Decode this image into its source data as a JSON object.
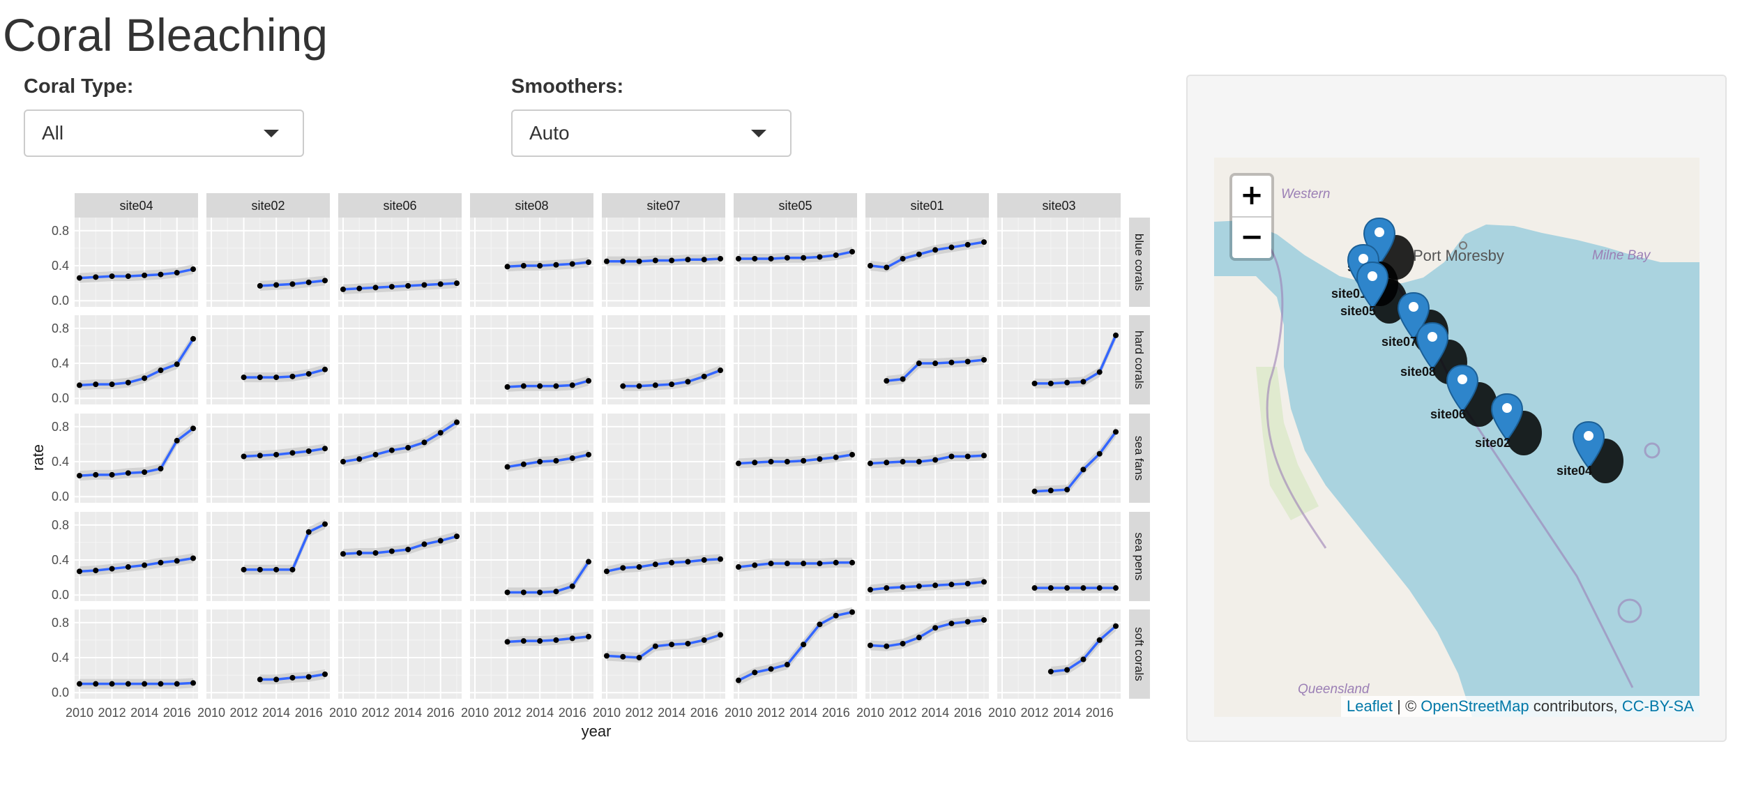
{
  "app": {
    "title": "Coral Bleaching"
  },
  "controls": {
    "coral_type": {
      "label": "Coral Type:",
      "value": "All"
    },
    "smoothers": {
      "label": "Smoothers:",
      "value": "Auto"
    }
  },
  "chart_data": {
    "type": "line",
    "xlabel": "year",
    "ylabel": "rate",
    "x_ticks": [
      2010,
      2012,
      2014,
      2016
    ],
    "y_ticks": [
      0.0,
      0.4,
      0.8
    ],
    "y_tick_labels": [
      "0.0",
      "0.4",
      "0.8"
    ],
    "xlim": [
      2009.7,
      2017.3
    ],
    "ylim": [
      -0.07,
      0.95
    ],
    "grid": true,
    "smoother_band": true,
    "colors": {
      "line": "#3366ff",
      "point": "#000000",
      "band": "#bdbdbd",
      "panel": "#ebebeb",
      "strip": "#d9d9d9"
    },
    "sites": [
      "site04",
      "site02",
      "site06",
      "site08",
      "site07",
      "site05",
      "site01",
      "site03"
    ],
    "coral_types": [
      "blue corals",
      "hard corals",
      "sea fans",
      "sea pens",
      "soft corals"
    ],
    "series": [
      {
        "site": "site04",
        "coral": "blue corals",
        "x": [
          2010,
          2011,
          2012,
          2013,
          2014,
          2015,
          2016,
          2017
        ],
        "values": [
          0.26,
          0.27,
          0.28,
          0.28,
          0.29,
          0.3,
          0.32,
          0.36
        ]
      },
      {
        "site": "site02",
        "coral": "blue corals",
        "x": [
          2013,
          2014,
          2015,
          2016,
          2017
        ],
        "values": [
          0.17,
          0.18,
          0.19,
          0.21,
          0.23
        ]
      },
      {
        "site": "site06",
        "coral": "blue corals",
        "x": [
          2010,
          2011,
          2012,
          2013,
          2014,
          2015,
          2016,
          2017
        ],
        "values": [
          0.13,
          0.14,
          0.15,
          0.16,
          0.17,
          0.18,
          0.19,
          0.2
        ]
      },
      {
        "site": "site08",
        "coral": "blue corals",
        "x": [
          2012,
          2013,
          2014,
          2015,
          2016,
          2017
        ],
        "values": [
          0.39,
          0.4,
          0.4,
          0.41,
          0.42,
          0.44
        ]
      },
      {
        "site": "site07",
        "coral": "blue corals",
        "x": [
          2010,
          2011,
          2012,
          2013,
          2014,
          2015,
          2016,
          2017
        ],
        "values": [
          0.45,
          0.45,
          0.45,
          0.46,
          0.46,
          0.47,
          0.47,
          0.48
        ]
      },
      {
        "site": "site05",
        "coral": "blue corals",
        "x": [
          2010,
          2011,
          2012,
          2013,
          2014,
          2015,
          2016,
          2017
        ],
        "values": [
          0.48,
          0.48,
          0.48,
          0.49,
          0.49,
          0.5,
          0.52,
          0.56
        ]
      },
      {
        "site": "site01",
        "coral": "blue corals",
        "x": [
          2010,
          2011,
          2012,
          2013,
          2014,
          2015,
          2016,
          2017
        ],
        "values": [
          0.4,
          0.38,
          0.48,
          0.53,
          0.58,
          0.61,
          0.64,
          0.67
        ]
      },
      {
        "site": "site04",
        "coral": "hard corals",
        "x": [
          2010,
          2011,
          2012,
          2013,
          2014,
          2015,
          2016,
          2017
        ],
        "values": [
          0.15,
          0.16,
          0.16,
          0.18,
          0.23,
          0.32,
          0.39,
          0.68
        ]
      },
      {
        "site": "site02",
        "coral": "hard corals",
        "x": [
          2012,
          2013,
          2014,
          2015,
          2016,
          2017
        ],
        "values": [
          0.24,
          0.24,
          0.24,
          0.25,
          0.28,
          0.33
        ]
      },
      {
        "site": "site08",
        "coral": "hard corals",
        "x": [
          2012,
          2013,
          2014,
          2015,
          2016,
          2017
        ],
        "values": [
          0.13,
          0.14,
          0.14,
          0.14,
          0.15,
          0.2
        ]
      },
      {
        "site": "site07",
        "coral": "hard corals",
        "x": [
          2011,
          2012,
          2013,
          2014,
          2015,
          2016,
          2017
        ],
        "values": [
          0.14,
          0.14,
          0.15,
          0.16,
          0.19,
          0.25,
          0.32
        ]
      },
      {
        "site": "site01",
        "coral": "hard corals",
        "x": [
          2011,
          2012,
          2013,
          2014,
          2015,
          2016,
          2017
        ],
        "values": [
          0.2,
          0.22,
          0.4,
          0.4,
          0.41,
          0.42,
          0.44
        ]
      },
      {
        "site": "site03",
        "coral": "hard corals",
        "x": [
          2012,
          2013,
          2014,
          2015,
          2016,
          2017
        ],
        "values": [
          0.17,
          0.17,
          0.18,
          0.19,
          0.3,
          0.72
        ]
      },
      {
        "site": "site04",
        "coral": "sea fans",
        "x": [
          2010,
          2011,
          2012,
          2013,
          2014,
          2015,
          2016,
          2017
        ],
        "values": [
          0.24,
          0.25,
          0.25,
          0.27,
          0.28,
          0.32,
          0.64,
          0.78
        ]
      },
      {
        "site": "site02",
        "coral": "sea fans",
        "x": [
          2012,
          2013,
          2014,
          2015,
          2016,
          2017
        ],
        "values": [
          0.46,
          0.47,
          0.48,
          0.5,
          0.52,
          0.55
        ]
      },
      {
        "site": "site06",
        "coral": "sea fans",
        "x": [
          2010,
          2011,
          2012,
          2013,
          2014,
          2015,
          2016,
          2017
        ],
        "values": [
          0.4,
          0.43,
          0.48,
          0.53,
          0.56,
          0.62,
          0.73,
          0.85
        ]
      },
      {
        "site": "site08",
        "coral": "sea fans",
        "x": [
          2012,
          2013,
          2014,
          2015,
          2016,
          2017
        ],
        "values": [
          0.34,
          0.37,
          0.4,
          0.41,
          0.44,
          0.48
        ]
      },
      {
        "site": "site05",
        "coral": "sea fans",
        "x": [
          2010,
          2011,
          2012,
          2013,
          2014,
          2015,
          2016,
          2017
        ],
        "values": [
          0.38,
          0.39,
          0.4,
          0.4,
          0.41,
          0.43,
          0.45,
          0.48
        ]
      },
      {
        "site": "site01",
        "coral": "sea fans",
        "x": [
          2010,
          2011,
          2012,
          2013,
          2014,
          2015,
          2016,
          2017
        ],
        "values": [
          0.38,
          0.39,
          0.4,
          0.4,
          0.42,
          0.46,
          0.46,
          0.47
        ]
      },
      {
        "site": "site03",
        "coral": "sea fans",
        "x": [
          2012,
          2013,
          2014,
          2015,
          2016,
          2017
        ],
        "values": [
          0.06,
          0.07,
          0.08,
          0.31,
          0.49,
          0.74
        ]
      },
      {
        "site": "site04",
        "coral": "sea pens",
        "x": [
          2010,
          2011,
          2012,
          2013,
          2014,
          2015,
          2016,
          2017
        ],
        "values": [
          0.27,
          0.28,
          0.3,
          0.32,
          0.34,
          0.37,
          0.39,
          0.42
        ]
      },
      {
        "site": "site02",
        "coral": "sea pens",
        "x": [
          2012,
          2013,
          2014,
          2015,
          2016,
          2017
        ],
        "values": [
          0.29,
          0.29,
          0.29,
          0.29,
          0.72,
          0.81
        ]
      },
      {
        "site": "site06",
        "coral": "sea pens",
        "x": [
          2010,
          2011,
          2012,
          2013,
          2014,
          2015,
          2016,
          2017
        ],
        "values": [
          0.47,
          0.48,
          0.48,
          0.5,
          0.52,
          0.58,
          0.62,
          0.67
        ]
      },
      {
        "site": "site08",
        "coral": "sea pens",
        "x": [
          2012,
          2013,
          2014,
          2015,
          2016,
          2017
        ],
        "values": [
          0.03,
          0.03,
          0.03,
          0.04,
          0.1,
          0.38
        ]
      },
      {
        "site": "site07",
        "coral": "sea pens",
        "x": [
          2010,
          2011,
          2012,
          2013,
          2014,
          2015,
          2016,
          2017
        ],
        "values": [
          0.27,
          0.31,
          0.32,
          0.35,
          0.37,
          0.38,
          0.4,
          0.41
        ]
      },
      {
        "site": "site05",
        "coral": "sea pens",
        "x": [
          2010,
          2011,
          2012,
          2013,
          2014,
          2015,
          2016,
          2017
        ],
        "values": [
          0.32,
          0.34,
          0.36,
          0.36,
          0.36,
          0.36,
          0.37,
          0.37
        ]
      },
      {
        "site": "site01",
        "coral": "sea pens",
        "x": [
          2010,
          2011,
          2012,
          2013,
          2014,
          2015,
          2016,
          2017
        ],
        "values": [
          0.06,
          0.08,
          0.09,
          0.1,
          0.11,
          0.12,
          0.13,
          0.15
        ]
      },
      {
        "site": "site03",
        "coral": "sea pens",
        "x": [
          2012,
          2013,
          2014,
          2015,
          2016,
          2017
        ],
        "values": [
          0.08,
          0.08,
          0.08,
          0.08,
          0.08,
          0.08
        ]
      },
      {
        "site": "site04",
        "coral": "soft corals",
        "x": [
          2010,
          2011,
          2012,
          2013,
          2014,
          2015,
          2016,
          2017
        ],
        "values": [
          0.1,
          0.1,
          0.1,
          0.1,
          0.1,
          0.1,
          0.1,
          0.11
        ]
      },
      {
        "site": "site02",
        "coral": "soft corals",
        "x": [
          2013,
          2014,
          2015,
          2016,
          2017
        ],
        "values": [
          0.15,
          0.15,
          0.17,
          0.18,
          0.21
        ]
      },
      {
        "site": "site08",
        "coral": "soft corals",
        "x": [
          2012,
          2013,
          2014,
          2015,
          2016,
          2017
        ],
        "values": [
          0.58,
          0.59,
          0.59,
          0.6,
          0.62,
          0.64
        ]
      },
      {
        "site": "site07",
        "coral": "soft corals",
        "x": [
          2010,
          2011,
          2012,
          2013,
          2014,
          2015,
          2016,
          2017
        ],
        "values": [
          0.42,
          0.41,
          0.4,
          0.53,
          0.55,
          0.56,
          0.6,
          0.66
        ]
      },
      {
        "site": "site05",
        "coral": "soft corals",
        "x": [
          2010,
          2011,
          2012,
          2013,
          2014,
          2015,
          2016,
          2017
        ],
        "values": [
          0.14,
          0.23,
          0.27,
          0.32,
          0.55,
          0.78,
          0.88,
          0.92
        ]
      },
      {
        "site": "site01",
        "coral": "soft corals",
        "x": [
          2010,
          2011,
          2012,
          2013,
          2014,
          2015,
          2016,
          2017
        ],
        "values": [
          0.54,
          0.53,
          0.56,
          0.63,
          0.74,
          0.79,
          0.81,
          0.83
        ]
      },
      {
        "site": "site03",
        "coral": "soft corals",
        "x": [
          2013,
          2014,
          2015,
          2016,
          2017
        ],
        "values": [
          0.24,
          0.26,
          0.38,
          0.6,
          0.76
        ]
      }
    ]
  },
  "map": {
    "zoom_in_label": "+",
    "zoom_out_label": "−",
    "place_labels": {
      "port_moresby": "Port Moresby",
      "western": "Western",
      "milne_bay": "Milne Bay",
      "queensland": "Queensland"
    },
    "markers": [
      "site03",
      "site01",
      "site05",
      "site07",
      "site08",
      "site06",
      "site02",
      "site04"
    ],
    "attribution": {
      "leaflet": "Leaflet",
      "separator": " | © ",
      "osm": "OpenStreetMap",
      "contributors": " contributors, ",
      "license": "CC-BY-SA"
    }
  }
}
